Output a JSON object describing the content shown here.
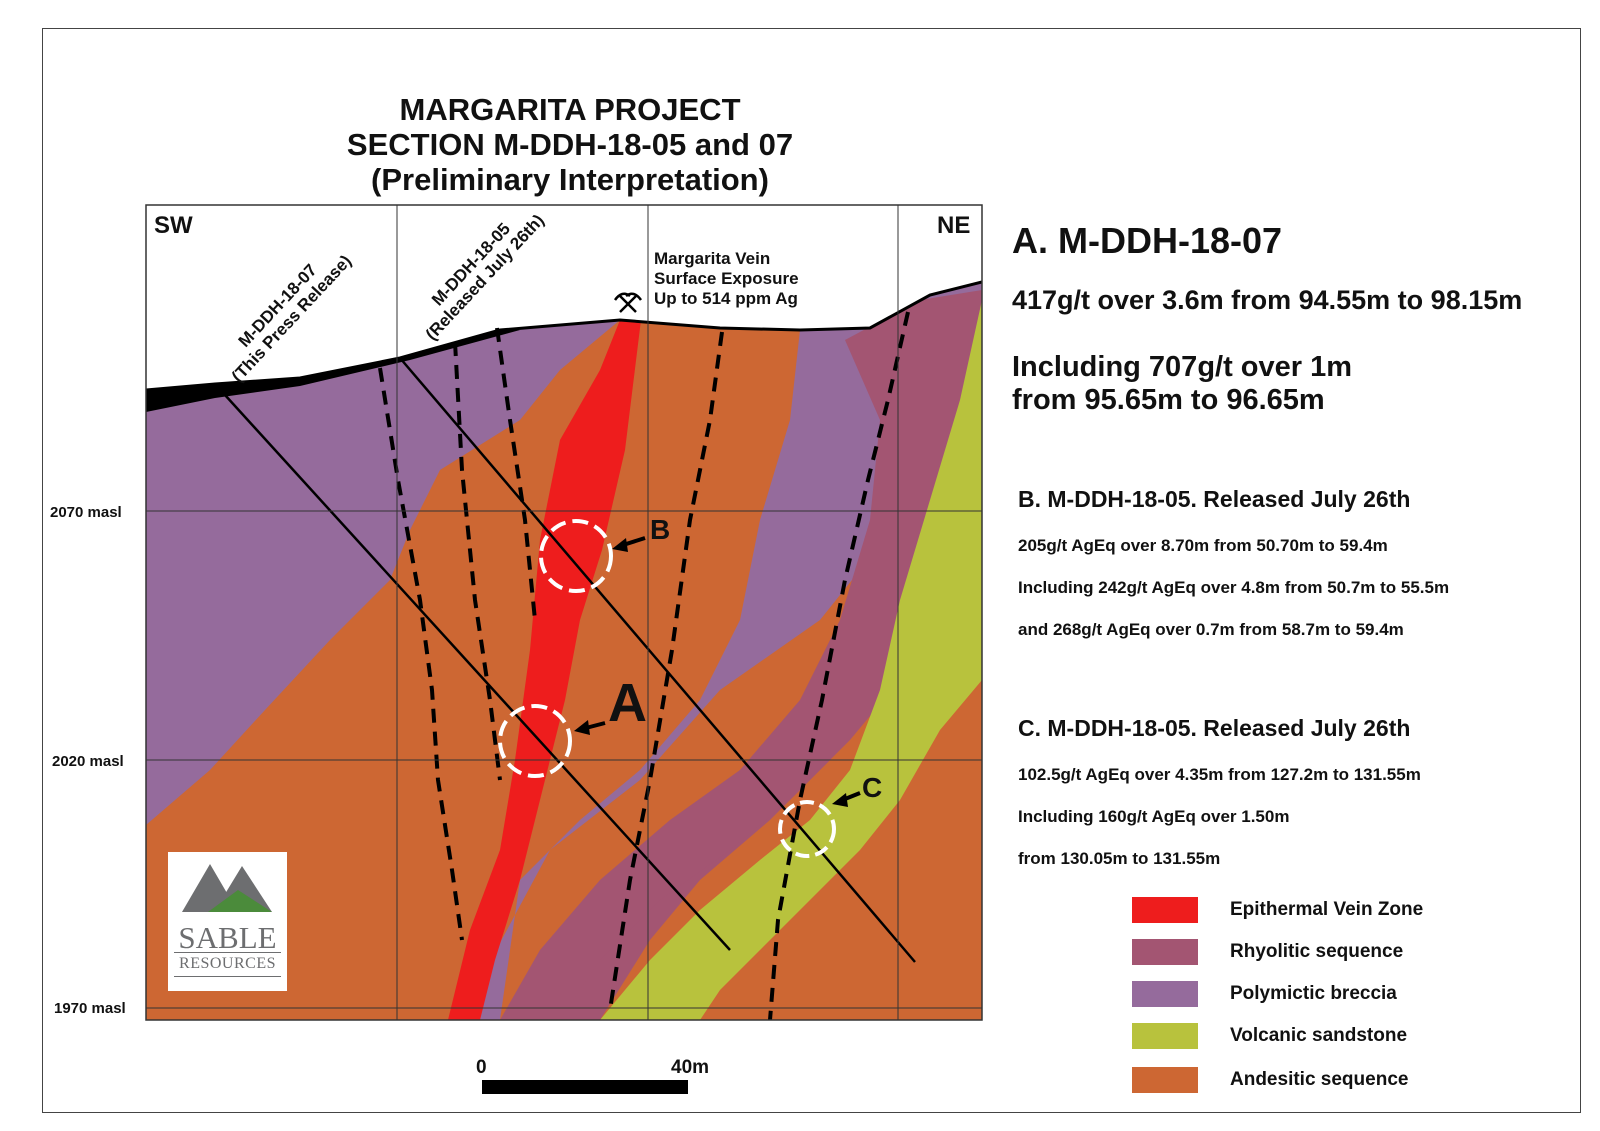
{
  "title": {
    "line1": "MARGARITA PROJECT",
    "line2": "SECTION M-DDH-18-05 and 07",
    "line3": "(Preliminary Interpretation)"
  },
  "section": {
    "sw_label": "SW",
    "ne_label": "NE",
    "elevations": [
      "2070 masl",
      "2020 masl",
      "1970 masl"
    ],
    "hole_07": {
      "line1": "M-DDH-18-07",
      "line2": "(This Press Release)"
    },
    "hole_05": {
      "line1": "M-DDH-18-05",
      "line2": "(Released July 26th)"
    },
    "vein_note": {
      "line1": "Margarita Vein",
      "line2": "Surface Exposure",
      "line3": "Up to 514 ppm Ag"
    },
    "markers": {
      "a": "A",
      "b": "B",
      "c": "C"
    },
    "scale": {
      "start": "0",
      "end": "40m"
    },
    "colors": {
      "vein": "#ee1d1d",
      "rhyolitic": "#a35572",
      "breccia": "#956b9c",
      "sandstone": "#b8c23d",
      "andesitic": "#cd6733"
    }
  },
  "info": {
    "a": {
      "heading": "A. M-DDH-18-07",
      "line1": "417g/t over 3.6m from 94.55m to 98.15m",
      "line2": "Including 707g/t over 1m",
      "line3": "from 95.65m to 96.65m"
    },
    "b": {
      "heading": "B. M-DDH-18-05. Released July 26th",
      "line1": "205g/t AgEq over 8.70m from 50.70m to 59.4m",
      "line2": "Including 242g/t AgEq over 4.8m from 50.7m to 55.5m",
      "line3": "and 268g/t AgEq over 0.7m from 58.7m to 59.4m"
    },
    "c": {
      "heading": "C. M-DDH-18-05. Released July 26th",
      "line1": "102.5g/t AgEq over 4.35m from 127.2m to 131.55m",
      "line2": "Including 160g/t AgEq over 1.50m",
      "line3": "from 130.05m to 131.55m"
    }
  },
  "legend": [
    {
      "label": "Epithermal Vein Zone",
      "color": "#ee1d1d"
    },
    {
      "label": "Rhyolitic sequence",
      "color": "#a35572"
    },
    {
      "label": "Polymictic breccia",
      "color": "#956b9c"
    },
    {
      "label": "Volcanic sandstone",
      "color": "#b8c23d"
    },
    {
      "label": "Andesitic sequence",
      "color": "#cd6733"
    }
  ],
  "logo": {
    "word1": "SABLE",
    "word2": "RESOURCES",
    "mountain_icon": "mountain-icon"
  }
}
